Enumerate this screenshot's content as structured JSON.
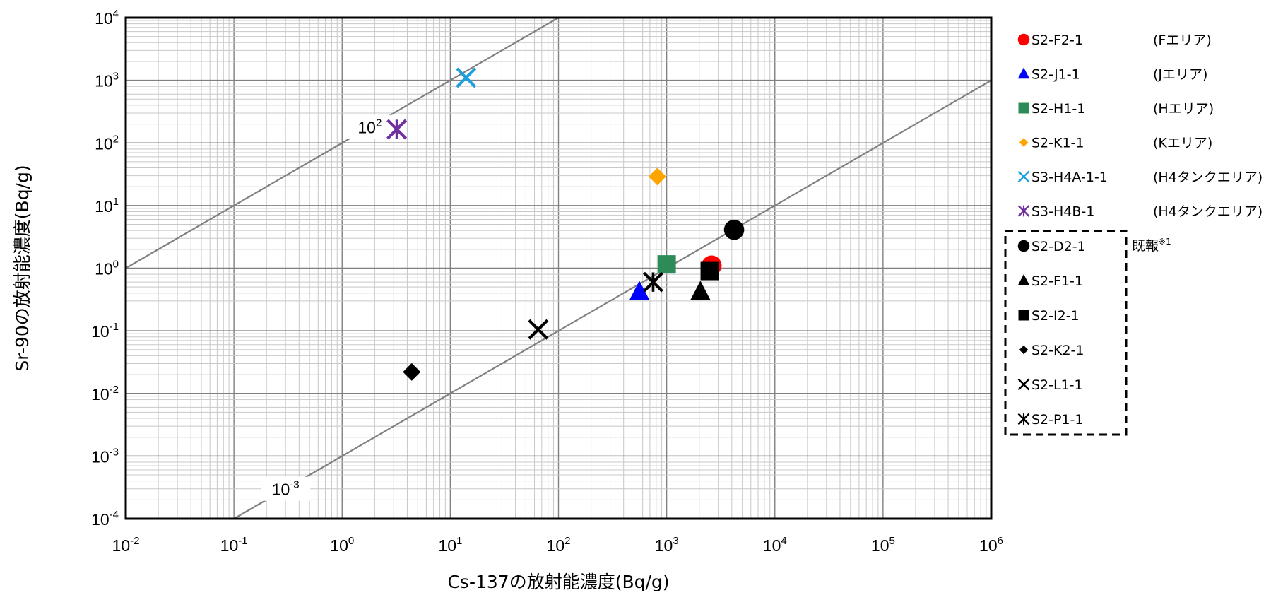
{
  "chart_data": {
    "type": "scatter",
    "xlabel": "Cs-137の放射能濃度(Bq/g)",
    "ylabel": "Sr-90の放射能濃度(Bq/g)",
    "xscale": "log",
    "yscale": "log",
    "xlim": [
      0.01,
      1000000
    ],
    "ylim": [
      0.0001,
      10000
    ],
    "x_ticks": [
      {
        "base": "10",
        "exp": "-2"
      },
      {
        "base": "10",
        "exp": "-1"
      },
      {
        "base": "10",
        "exp": "0"
      },
      {
        "base": "10",
        "exp": "1"
      },
      {
        "base": "10",
        "exp": "2"
      },
      {
        "base": "10",
        "exp": "3"
      },
      {
        "base": "10",
        "exp": "4"
      },
      {
        "base": "10",
        "exp": "5"
      },
      {
        "base": "10",
        "exp": "6"
      }
    ],
    "y_ticks": [
      {
        "base": "10",
        "exp": "-4"
      },
      {
        "base": "10",
        "exp": "-3"
      },
      {
        "base": "10",
        "exp": "-2"
      },
      {
        "base": "10",
        "exp": "-1"
      },
      {
        "base": "10",
        "exp": "0"
      },
      {
        "base": "10",
        "exp": "1"
      },
      {
        "base": "10",
        "exp": "2"
      },
      {
        "base": "10",
        "exp": "3"
      },
      {
        "base": "10",
        "exp": "4"
      }
    ],
    "grid": true,
    "legend_position": "right",
    "reference_lines": [
      {
        "ratio": 100,
        "label_base": "10",
        "label_exp": "2",
        "label_x": 1.8
      },
      {
        "ratio": 0.001,
        "label_base": "10",
        "label_exp": "-3",
        "label_x": 0.3
      }
    ],
    "series": [
      {
        "name": "S2-F2-1",
        "area": "(Fエリア)",
        "marker": "circle",
        "color": "#ff0000",
        "x": 2600,
        "y": 1.1
      },
      {
        "name": "S2-J1-1",
        "area": "(Jエリア)",
        "marker": "triangle",
        "color": "#0000ff",
        "x": 560,
        "y": 0.42
      },
      {
        "name": "S2-H1-1",
        "area": "(Hエリア)",
        "marker": "square",
        "color": "#2e8b57",
        "x": 1000,
        "y": 1.15
      },
      {
        "name": "S2-K1-1",
        "area": "(Kエリア)",
        "marker": "diamond",
        "color": "#ffa500",
        "x": 820,
        "y": 29
      },
      {
        "name": "S3-H4A-1-1",
        "area": "(H4タンクエリア)",
        "marker": "x",
        "color": "#1e9fe0",
        "x": 14,
        "y": 1100
      },
      {
        "name": "S3-H4B-1",
        "area": "(H4タンクエリア)",
        "marker": "star",
        "color": "#7030a0",
        "x": 3.2,
        "y": 165
      },
      {
        "name": "S2-D2-1",
        "group": "prior",
        "marker": "circle",
        "color": "#000000",
        "x": 4200,
        "y": 4.1
      },
      {
        "name": "S2-F1-1",
        "group": "prior",
        "marker": "triangle",
        "color": "#000000",
        "x": 2050,
        "y": 0.42
      },
      {
        "name": "S2-I2-1",
        "group": "prior",
        "marker": "square",
        "color": "#000000",
        "x": 2500,
        "y": 0.9
      },
      {
        "name": "S2-K2-1",
        "group": "prior",
        "marker": "diamond",
        "color": "#000000",
        "x": 4.4,
        "y": 0.022
      },
      {
        "name": "S2-L1-1",
        "group": "prior",
        "marker": "x",
        "color": "#000000",
        "points": [
          {
            "x": 65,
            "y": 0.105
          }
        ]
      },
      {
        "name": "S2-P1-1",
        "group": "prior",
        "marker": "star",
        "color": "#000000",
        "points": [
          {
            "x": 750,
            "y": 0.6
          }
        ]
      }
    ],
    "prior_group_label": "既報",
    "prior_group_note": "※1"
  }
}
